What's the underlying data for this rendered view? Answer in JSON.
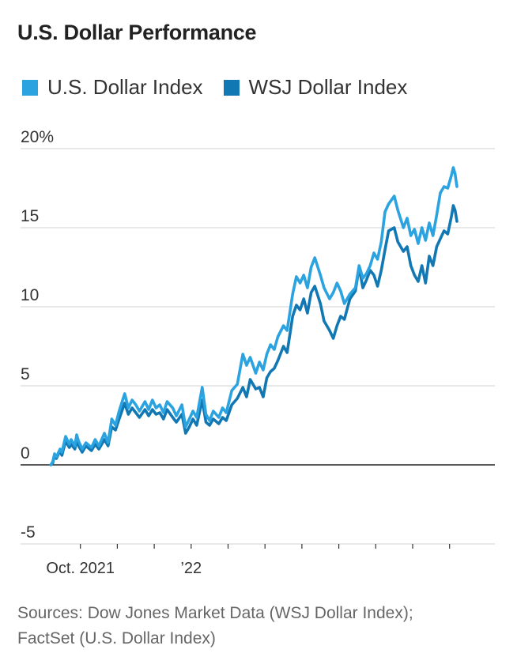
{
  "chart_data": {
    "type": "line",
    "title": "U.S. Dollar Performance",
    "ylim": [
      -5,
      20
    ],
    "yticks": [
      20,
      15,
      10,
      5,
      0,
      -5
    ],
    "ytick_labels": [
      "20%",
      "15",
      "10",
      "5",
      "0",
      "-5"
    ],
    "x_range_months": [
      0,
      11.2
    ],
    "xtick_months": [
      1,
      2,
      3,
      4,
      5,
      6,
      7,
      8,
      9,
      10,
      11
    ],
    "xtick_labels": [
      {
        "month": 1,
        "label": "Oct. 2021"
      },
      {
        "month": 4,
        "label": "’22"
      }
    ],
    "series": [
      {
        "name": "U.S. Dollar Index",
        "color": "#2ba3e0",
        "x": [
          0.2,
          0.25,
          0.3,
          0.35,
          0.45,
          0.5,
          0.6,
          0.7,
          0.75,
          0.85,
          0.9,
          0.95,
          1.05,
          1.15,
          1.3,
          1.4,
          1.5,
          1.65,
          1.75,
          1.85,
          1.95,
          2.05,
          2.2,
          2.3,
          2.4,
          2.5,
          2.6,
          2.75,
          2.85,
          2.95,
          3.05,
          3.15,
          3.25,
          3.35,
          3.5,
          3.6,
          3.75,
          3.85,
          3.95,
          4.05,
          4.15,
          4.3,
          4.4,
          4.5,
          4.6,
          4.75,
          4.85,
          4.95,
          5.1,
          5.25,
          5.4,
          5.5,
          5.6,
          5.75,
          5.85,
          5.95,
          6.05,
          6.15,
          6.25,
          6.35,
          6.5,
          6.6,
          6.75,
          6.85,
          6.95,
          7.05,
          7.15,
          7.25,
          7.35,
          7.5,
          7.6,
          7.75,
          7.85,
          7.95,
          8.05,
          8.15,
          8.3,
          8.45,
          8.55,
          8.65,
          8.75,
          8.85,
          8.95,
          9.05,
          9.15,
          9.25,
          9.35,
          9.5,
          9.6,
          9.75,
          9.85,
          9.95,
          10.05,
          10.15,
          10.25,
          10.35,
          10.45,
          10.55,
          10.65,
          10.75,
          10.85,
          10.95,
          11.05,
          11.1,
          11.15,
          11.2
        ],
        "values": [
          0.0,
          0.2,
          0.7,
          0.5,
          1.0,
          0.8,
          1.8,
          1.3,
          1.6,
          1.2,
          1.9,
          1.5,
          1.0,
          1.4,
          1.1,
          1.6,
          1.2,
          2.0,
          1.4,
          2.9,
          2.5,
          3.4,
          4.5,
          3.6,
          4.1,
          3.8,
          3.4,
          4.0,
          3.5,
          4.1,
          3.6,
          3.8,
          3.3,
          4.0,
          3.6,
          3.1,
          3.8,
          2.4,
          2.9,
          3.4,
          3.0,
          4.9,
          3.2,
          2.8,
          3.4,
          3.0,
          3.6,
          3.3,
          4.7,
          5.1,
          7.0,
          6.3,
          6.8,
          5.8,
          6.5,
          6.0,
          7.0,
          7.6,
          7.3,
          8.1,
          8.8,
          8.5,
          10.8,
          11.9,
          11.5,
          12.0,
          11.2,
          12.5,
          13.1,
          12.0,
          11.2,
          10.5,
          10.9,
          11.5,
          11.0,
          10.2,
          10.8,
          11.2,
          12.6,
          11.8,
          12.1,
          12.6,
          13.4,
          13.0,
          14.1,
          16.0,
          16.5,
          17.0,
          16.1,
          15.0,
          15.6,
          14.5,
          14.9,
          14.0,
          15.0,
          14.2,
          15.3,
          14.5,
          15.8,
          17.2,
          17.6,
          17.5,
          18.3,
          18.8,
          18.4,
          17.6
        ]
      },
      {
        "name": "WSJ Dollar Index",
        "color": "#1278b4",
        "x": [
          0.2,
          0.25,
          0.3,
          0.35,
          0.45,
          0.5,
          0.6,
          0.7,
          0.75,
          0.85,
          0.9,
          0.95,
          1.05,
          1.15,
          1.3,
          1.4,
          1.5,
          1.65,
          1.75,
          1.85,
          1.95,
          2.05,
          2.2,
          2.3,
          2.4,
          2.5,
          2.6,
          2.75,
          2.85,
          2.95,
          3.05,
          3.15,
          3.25,
          3.35,
          3.5,
          3.6,
          3.75,
          3.85,
          3.95,
          4.05,
          4.15,
          4.3,
          4.4,
          4.5,
          4.6,
          4.75,
          4.85,
          4.95,
          5.1,
          5.25,
          5.4,
          5.5,
          5.6,
          5.75,
          5.85,
          5.95,
          6.05,
          6.15,
          6.25,
          6.35,
          6.5,
          6.6,
          6.75,
          6.85,
          6.95,
          7.05,
          7.15,
          7.25,
          7.35,
          7.5,
          7.6,
          7.75,
          7.85,
          7.95,
          8.05,
          8.15,
          8.3,
          8.45,
          8.55,
          8.65,
          8.75,
          8.85,
          8.95,
          9.05,
          9.15,
          9.25,
          9.35,
          9.5,
          9.6,
          9.75,
          9.85,
          9.95,
          10.05,
          10.15,
          10.25,
          10.35,
          10.45,
          10.55,
          10.65,
          10.75,
          10.85,
          10.95,
          11.05,
          11.1,
          11.15,
          11.2
        ],
        "values": [
          0.0,
          0.1,
          0.6,
          0.4,
          0.9,
          0.6,
          1.5,
          1.1,
          1.3,
          1.0,
          1.6,
          1.2,
          0.8,
          1.2,
          0.9,
          1.3,
          1.0,
          1.6,
          1.2,
          2.4,
          2.2,
          2.9,
          3.9,
          3.2,
          3.6,
          3.3,
          3.0,
          3.5,
          3.1,
          3.5,
          3.2,
          3.3,
          2.9,
          3.5,
          3.0,
          2.7,
          3.2,
          2.0,
          2.4,
          2.9,
          2.5,
          4.1,
          2.7,
          2.5,
          2.9,
          2.6,
          3.0,
          2.8,
          3.8,
          4.2,
          4.9,
          4.3,
          5.4,
          4.8,
          4.9,
          4.3,
          5.5,
          5.9,
          6.1,
          6.6,
          7.5,
          7.1,
          9.4,
          10.1,
          9.8,
          10.5,
          9.6,
          10.9,
          11.3,
          10.2,
          9.1,
          8.5,
          8.0,
          8.8,
          9.4,
          9.2,
          10.5,
          11.0,
          12.5,
          11.2,
          11.7,
          12.3,
          12.0,
          11.3,
          12.3,
          13.6,
          14.8,
          15.0,
          14.1,
          13.5,
          13.8,
          12.6,
          12.0,
          11.6,
          12.6,
          11.5,
          13.2,
          12.6,
          13.8,
          14.3,
          14.8,
          14.6,
          15.7,
          16.4,
          16.1,
          15.4
        ]
      }
    ]
  },
  "legend": [
    {
      "label": "U.S. Dollar Index",
      "color": "#2ba3e0"
    },
    {
      "label": "WSJ Dollar Index",
      "color": "#1278b4"
    }
  ],
  "source": {
    "line1": "Sources: Dow Jones Market Data (WSJ Dollar Index);",
    "line2": "FactSet (U.S. Dollar Index)"
  }
}
